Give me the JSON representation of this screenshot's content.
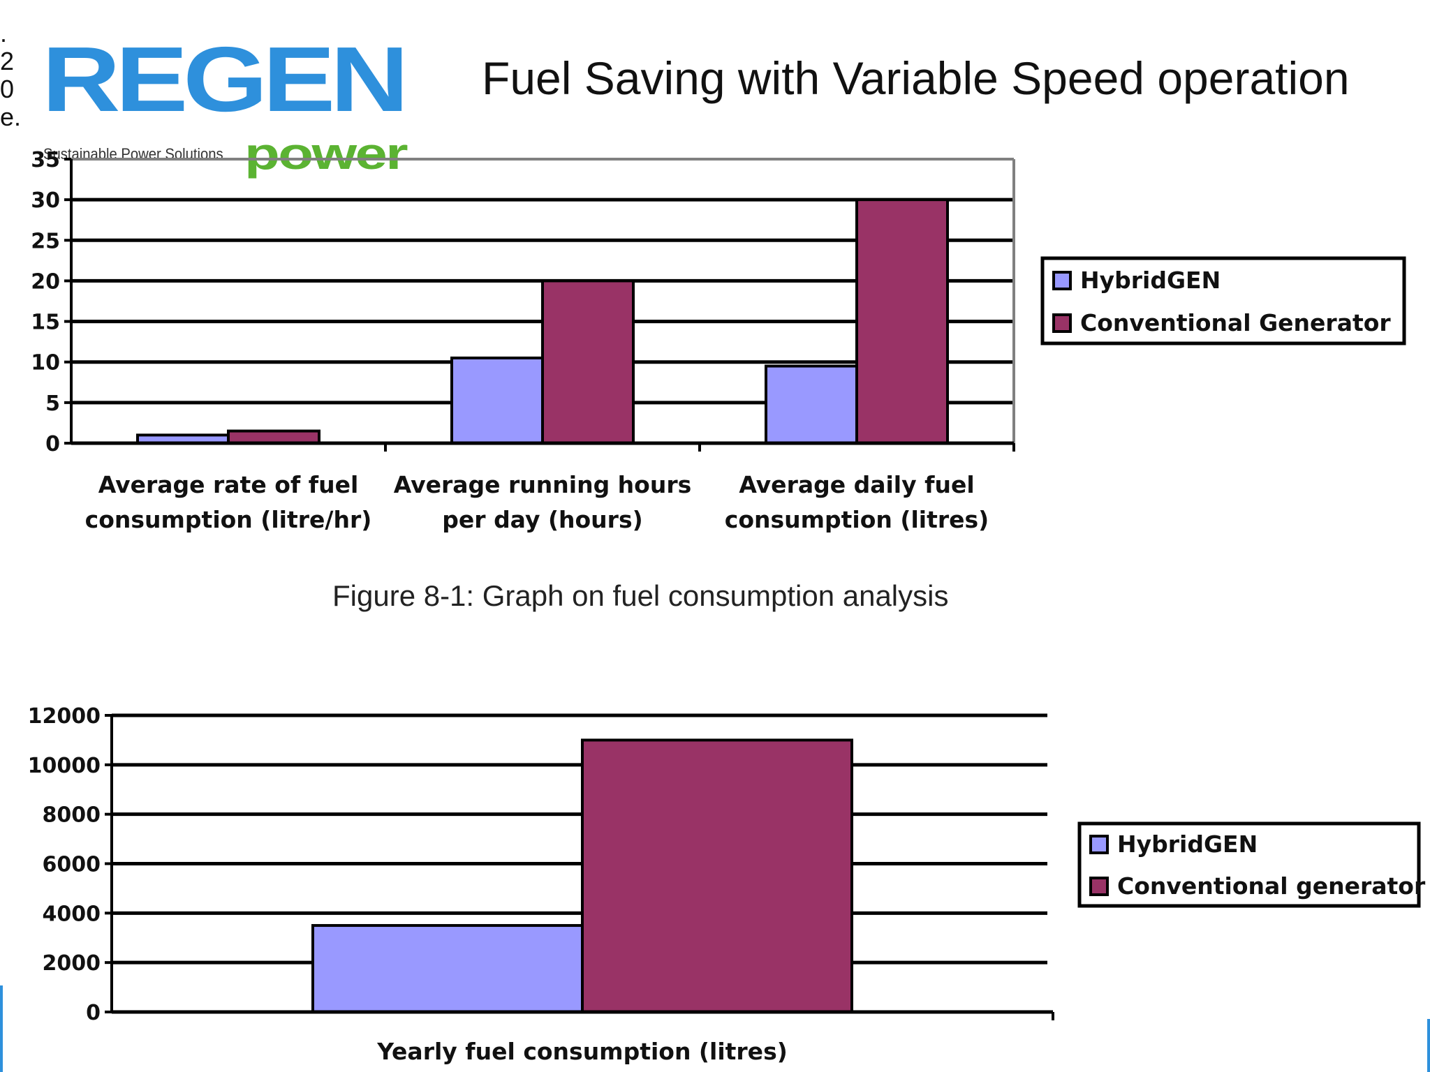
{
  "logo": {
    "main": "REGEN",
    "sub": "power",
    "tagline": "Sustainable Power Solutions"
  },
  "header": {
    "title": "Fuel Saving with Variable Speed operation"
  },
  "edge_fragment": ". 2 0 e.",
  "figure_caption": "Figure 8-1: Graph on fuel consumption analysis",
  "colors": {
    "hybrid": "#9999ff",
    "conventional": "#993366",
    "logo_blue": "#2e90dc",
    "logo_green": "#5bb332"
  },
  "chart_data": [
    {
      "type": "bar",
      "categories": [
        [
          "Average rate of fuel",
          "consumption  (litre/hr)"
        ],
        [
          "Average running hours",
          "per day (hours)"
        ],
        [
          "Average daily fuel",
          "consumption (litres)"
        ]
      ],
      "series": [
        {
          "name": "HybridGEN",
          "values": [
            1,
            10.5,
            9.5
          ]
        },
        {
          "name": "Conventional Generator",
          "values": [
            1.5,
            20,
            30
          ]
        }
      ],
      "ylim": [
        0,
        35
      ],
      "yticks": [
        0,
        5,
        10,
        15,
        20,
        25,
        30,
        35
      ],
      "grid": true,
      "legend": "right"
    },
    {
      "type": "bar",
      "categories": [
        [
          "Yearly fuel consumption (litres)"
        ]
      ],
      "series": [
        {
          "name": "HybridGEN",
          "values": [
            3500
          ]
        },
        {
          "name": "Conventional generator",
          "values": [
            11000
          ]
        }
      ],
      "ylim": [
        0,
        12000
      ],
      "yticks": [
        0,
        2000,
        4000,
        6000,
        8000,
        10000,
        12000
      ],
      "grid": true,
      "legend": "right"
    }
  ]
}
